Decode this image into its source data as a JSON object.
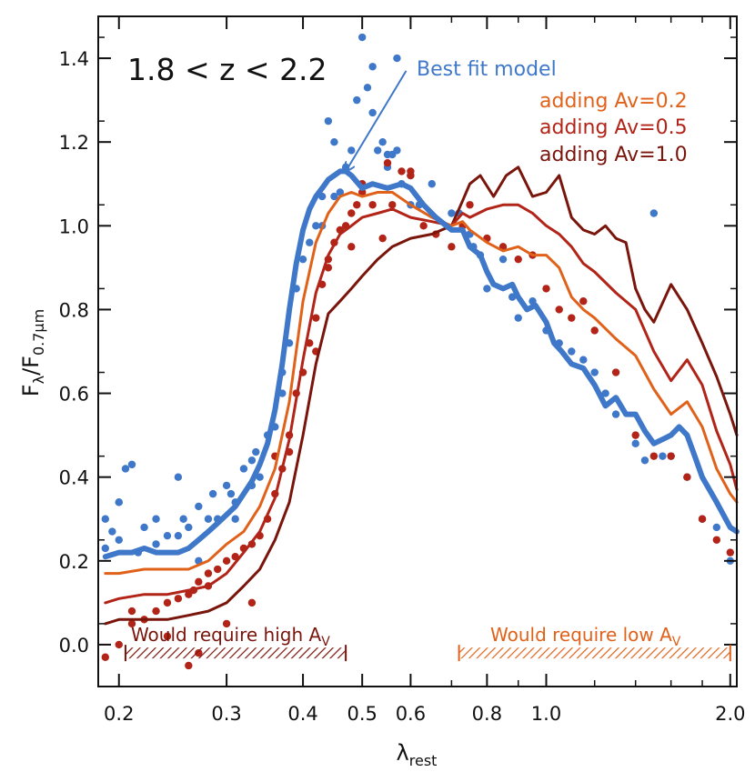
{
  "chart_data": {
    "type": "scatter",
    "title": "",
    "xlabel": "λ",
    "xlabel_sub": "rest",
    "ylabel": "F",
    "ylabel_sub1": "λ",
    "ylabel_mid": "/F",
    "ylabel_sub2": "0.7μm",
    "x_scale": "log",
    "xlim": [
      0.185,
      2.05
    ],
    "ylim": [
      -0.1,
      1.5
    ],
    "x_ticks": [
      {
        "value": 0.2,
        "label": "0.2"
      },
      {
        "value": 0.3,
        "label": "0.3"
      },
      {
        "value": 0.4,
        "label": "0.4"
      },
      {
        "value": 0.5,
        "label": "0.5"
      },
      {
        "value": 0.6,
        "label": "0.6"
      },
      {
        "value": 0.8,
        "label": "0.8"
      },
      {
        "value": 1.0,
        "label": "1.0"
      },
      {
        "value": 2.0,
        "label": "2.0"
      }
    ],
    "x_minor_ticks": [
      0.7,
      0.9,
      1.2,
      1.4,
      1.6,
      1.8
    ],
    "y_ticks": [
      {
        "value": 0.0,
        "label": "0.0"
      },
      {
        "value": 0.2,
        "label": "0.2"
      },
      {
        "value": 0.4,
        "label": "0.4"
      },
      {
        "value": 0.6,
        "label": "0.6"
      },
      {
        "value": 0.8,
        "label": "0.8"
      },
      {
        "value": 1.0,
        "label": "1.0"
      },
      {
        "value": 1.2,
        "label": "1.2"
      },
      {
        "value": 1.4,
        "label": "1.4"
      }
    ],
    "redshift_label": "1.8 < z < 2.2",
    "annotation": {
      "text": "Best fit model",
      "arrow_to": [
        0.47,
        1.13
      ],
      "arrow_from": [
        0.59,
        1.37
      ]
    },
    "legend": [
      "adding Av=0.2",
      "adding Av=0.5",
      "adding Av=1.0"
    ],
    "range_high": {
      "text": "Would require high A",
      "sub": "V",
      "from": 0.205,
      "to": 0.47
    },
    "range_low": {
      "text": "Would require low A",
      "sub": "V",
      "from": 0.72,
      "to": 2.0
    },
    "colors": {
      "best_fit": "#3f78c9",
      "av02": "#e0621a",
      "av05": "#b22418",
      "av10": "#7a150c",
      "points_blue": "#3f78c9",
      "points_red": "#b22418",
      "range_high": "#7a150c",
      "range_low": "#e0621a"
    },
    "series": [
      {
        "name": "Best fit model",
        "key": "best_fit",
        "width": 6,
        "x": [
          0.19,
          0.2,
          0.21,
          0.22,
          0.23,
          0.24,
          0.25,
          0.26,
          0.27,
          0.28,
          0.29,
          0.3,
          0.31,
          0.32,
          0.33,
          0.34,
          0.35,
          0.36,
          0.37,
          0.38,
          0.39,
          0.4,
          0.41,
          0.42,
          0.43,
          0.44,
          0.45,
          0.46,
          0.47,
          0.48,
          0.5,
          0.52,
          0.55,
          0.58,
          0.6,
          0.63,
          0.66,
          0.7,
          0.73,
          0.75,
          0.78,
          0.8,
          0.82,
          0.85,
          0.88,
          0.9,
          0.93,
          0.96,
          1.0,
          1.03,
          1.06,
          1.1,
          1.15,
          1.2,
          1.25,
          1.3,
          1.35,
          1.4,
          1.45,
          1.5,
          1.55,
          1.6,
          1.65,
          1.7,
          1.75,
          1.8,
          1.9,
          2.0,
          2.05
        ],
        "y": [
          0.21,
          0.22,
          0.22,
          0.23,
          0.22,
          0.22,
          0.22,
          0.23,
          0.25,
          0.27,
          0.29,
          0.31,
          0.33,
          0.36,
          0.39,
          0.43,
          0.48,
          0.56,
          0.67,
          0.8,
          0.91,
          0.99,
          1.04,
          1.07,
          1.09,
          1.11,
          1.12,
          1.13,
          1.13,
          1.12,
          1.09,
          1.1,
          1.09,
          1.1,
          1.09,
          1.05,
          1.02,
          0.99,
          0.99,
          0.95,
          0.93,
          0.89,
          0.86,
          0.85,
          0.86,
          0.83,
          0.8,
          0.81,
          0.77,
          0.72,
          0.7,
          0.67,
          0.66,
          0.62,
          0.57,
          0.59,
          0.55,
          0.55,
          0.51,
          0.48,
          0.49,
          0.5,
          0.52,
          0.5,
          0.45,
          0.4,
          0.34,
          0.28,
          0.27
        ]
      },
      {
        "name": "adding Av=0.2",
        "key": "av02",
        "width": 3,
        "x": [
          0.19,
          0.2,
          0.22,
          0.24,
          0.26,
          0.28,
          0.3,
          0.32,
          0.34,
          0.36,
          0.38,
          0.4,
          0.42,
          0.44,
          0.46,
          0.48,
          0.5,
          0.53,
          0.56,
          0.6,
          0.65,
          0.7,
          0.73,
          0.75,
          0.8,
          0.85,
          0.9,
          0.95,
          1.0,
          1.05,
          1.1,
          1.15,
          1.2,
          1.3,
          1.4,
          1.5,
          1.6,
          1.7,
          1.8,
          1.9,
          2.0,
          2.05
        ],
        "y": [
          0.17,
          0.17,
          0.18,
          0.18,
          0.18,
          0.2,
          0.24,
          0.27,
          0.33,
          0.42,
          0.58,
          0.82,
          0.96,
          1.03,
          1.07,
          1.08,
          1.07,
          1.08,
          1.08,
          1.05,
          1.02,
          1.0,
          1.01,
          0.99,
          0.96,
          0.94,
          0.95,
          0.93,
          0.93,
          0.9,
          0.83,
          0.8,
          0.78,
          0.73,
          0.69,
          0.61,
          0.55,
          0.58,
          0.52,
          0.42,
          0.36,
          0.34
        ]
      },
      {
        "name": "adding Av=0.5",
        "key": "av05",
        "width": 3,
        "x": [
          0.19,
          0.2,
          0.22,
          0.24,
          0.26,
          0.28,
          0.3,
          0.32,
          0.34,
          0.36,
          0.38,
          0.4,
          0.42,
          0.44,
          0.46,
          0.48,
          0.5,
          0.53,
          0.56,
          0.6,
          0.65,
          0.7,
          0.73,
          0.75,
          0.8,
          0.85,
          0.9,
          0.95,
          1.0,
          1.05,
          1.1,
          1.15,
          1.2,
          1.3,
          1.4,
          1.5,
          1.6,
          1.7,
          1.8,
          1.9,
          2.0,
          2.05
        ],
        "y": [
          0.1,
          0.11,
          0.12,
          0.12,
          0.13,
          0.14,
          0.17,
          0.22,
          0.27,
          0.35,
          0.49,
          0.68,
          0.84,
          0.93,
          0.98,
          1.0,
          1.02,
          1.03,
          1.04,
          1.02,
          1.01,
          1.0,
          1.03,
          1.02,
          1.04,
          1.05,
          1.05,
          1.03,
          1.0,
          0.98,
          0.95,
          0.91,
          0.89,
          0.84,
          0.8,
          0.7,
          0.63,
          0.68,
          0.62,
          0.51,
          0.43,
          0.37
        ]
      },
      {
        "name": "adding Av=1.0",
        "key": "av10",
        "width": 3,
        "x": [
          0.19,
          0.2,
          0.22,
          0.24,
          0.26,
          0.28,
          0.3,
          0.32,
          0.34,
          0.36,
          0.38,
          0.4,
          0.42,
          0.44,
          0.46,
          0.48,
          0.5,
          0.53,
          0.56,
          0.6,
          0.65,
          0.7,
          0.73,
          0.75,
          0.78,
          0.82,
          0.86,
          0.9,
          0.95,
          1.0,
          1.05,
          1.1,
          1.15,
          1.2,
          1.25,
          1.3,
          1.35,
          1.4,
          1.45,
          1.5,
          1.6,
          1.7,
          1.8,
          1.9,
          2.0,
          2.05
        ],
        "y": [
          0.05,
          0.06,
          0.06,
          0.06,
          0.07,
          0.08,
          0.1,
          0.14,
          0.18,
          0.25,
          0.34,
          0.5,
          0.67,
          0.79,
          0.82,
          0.85,
          0.88,
          0.92,
          0.95,
          0.97,
          0.98,
          1.0,
          1.06,
          1.1,
          1.12,
          1.07,
          1.12,
          1.14,
          1.07,
          1.08,
          1.12,
          1.02,
          0.99,
          0.98,
          1.0,
          0.97,
          0.96,
          0.85,
          0.8,
          0.77,
          0.86,
          0.8,
          0.72,
          0.64,
          0.55,
          0.5
        ]
      }
    ],
    "points_blue": {
      "x": [
        0.19,
        0.195,
        0.2,
        0.205,
        0.21,
        0.2,
        0.22,
        0.215,
        0.23,
        0.24,
        0.25,
        0.255,
        0.26,
        0.27,
        0.28,
        0.285,
        0.29,
        0.3,
        0.305,
        0.31,
        0.32,
        0.33,
        0.335,
        0.34,
        0.35,
        0.36,
        0.37,
        0.38,
        0.39,
        0.4,
        0.41,
        0.42,
        0.43,
        0.44,
        0.45,
        0.46,
        0.47,
        0.48,
        0.49,
        0.5,
        0.51,
        0.52,
        0.53,
        0.54,
        0.55,
        0.56,
        0.57,
        0.58,
        0.6,
        0.62,
        0.65,
        0.7,
        0.72,
        0.75,
        0.76,
        0.78,
        0.8,
        0.85,
        0.88,
        0.9,
        0.95,
        1.0,
        1.05,
        1.1,
        1.15,
        1.2,
        1.25,
        1.3,
        1.4,
        1.45,
        1.5,
        1.55,
        1.6,
        1.7,
        1.8,
        1.9,
        2.0,
        0.2,
        0.23,
        0.27,
        0.31,
        0.37,
        0.43,
        0.52,
        0.57,
        0.19,
        0.25,
        0.33,
        0.45,
        0.55,
        0.6
      ],
      "y": [
        0.3,
        0.27,
        0.34,
        0.42,
        0.43,
        0.25,
        0.28,
        0.22,
        0.3,
        0.26,
        0.4,
        0.3,
        0.28,
        0.33,
        0.3,
        0.36,
        0.3,
        0.38,
        0.36,
        0.34,
        0.42,
        0.44,
        0.46,
        0.4,
        0.5,
        0.52,
        0.6,
        0.72,
        0.85,
        0.92,
        0.96,
        1.0,
        1.07,
        1.25,
        1.2,
        1.08,
        1.14,
        1.18,
        1.3,
        1.45,
        1.33,
        1.27,
        1.18,
        1.2,
        1.14,
        1.17,
        1.18,
        1.1,
        1.12,
        1.05,
        1.1,
        1.03,
        1.03,
        0.98,
        0.95,
        0.93,
        0.85,
        0.92,
        0.83,
        0.78,
        0.82,
        0.75,
        0.72,
        0.7,
        0.68,
        0.65,
        0.6,
        0.55,
        0.48,
        0.44,
        1.03,
        0.45,
        0.45,
        0.4,
        0.3,
        0.28,
        0.2,
        0.34,
        0.24,
        0.2,
        0.3,
        0.65,
        1.0,
        1.38,
        1.4,
        0.23,
        0.26,
        0.38,
        1.07,
        1.17,
        1.05
      ]
    },
    "points_red": {
      "x": [
        0.19,
        0.2,
        0.21,
        0.22,
        0.23,
        0.24,
        0.25,
        0.26,
        0.265,
        0.27,
        0.28,
        0.29,
        0.3,
        0.31,
        0.32,
        0.33,
        0.34,
        0.35,
        0.36,
        0.37,
        0.38,
        0.39,
        0.4,
        0.41,
        0.42,
        0.43,
        0.44,
        0.45,
        0.46,
        0.47,
        0.48,
        0.49,
        0.5,
        0.52,
        0.54,
        0.56,
        0.58,
        0.6,
        0.63,
        0.66,
        0.7,
        0.73,
        0.75,
        0.8,
        0.85,
        0.9,
        0.95,
        1.0,
        1.05,
        1.1,
        1.15,
        1.2,
        1.3,
        1.4,
        1.5,
        1.6,
        1.7,
        1.8,
        1.9,
        2.0,
        0.26,
        0.27,
        0.3,
        0.33,
        0.38,
        0.42,
        0.48,
        0.55,
        0.6,
        0.21,
        0.24,
        0.28,
        0.36,
        0.44,
        0.5
      ],
      "y": [
        -0.03,
        0.0,
        0.05,
        0.06,
        0.08,
        0.1,
        0.11,
        0.12,
        0.13,
        0.15,
        0.17,
        0.18,
        0.2,
        0.21,
        0.23,
        0.24,
        0.26,
        0.3,
        0.36,
        0.42,
        0.46,
        0.6,
        0.65,
        0.72,
        0.78,
        0.86,
        0.9,
        0.96,
        0.99,
        1.0,
        1.03,
        1.05,
        1.08,
        1.05,
        0.97,
        1.05,
        1.13,
        1.12,
        1.0,
        0.98,
        0.95,
        1.0,
        1.05,
        0.97,
        0.95,
        0.92,
        0.93,
        0.85,
        0.8,
        0.78,
        0.82,
        0.75,
        0.65,
        0.5,
        0.45,
        0.45,
        0.4,
        0.3,
        0.25,
        0.22,
        -0.05,
        -0.02,
        0.05,
        0.1,
        0.5,
        0.7,
        0.95,
        1.15,
        1.13,
        0.08,
        0.02,
        0.14,
        0.45,
        0.92,
        1.1
      ]
    }
  }
}
